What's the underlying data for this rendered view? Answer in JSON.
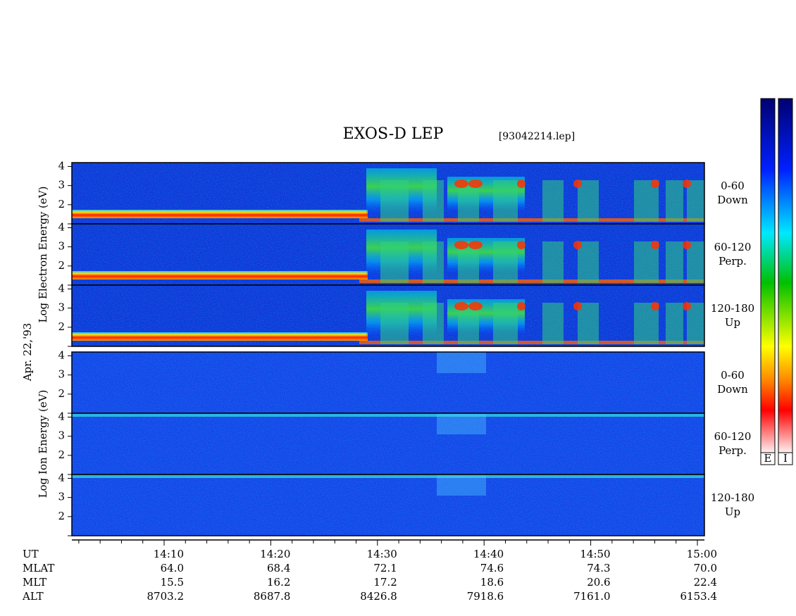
{
  "header": {
    "title": "EXOS-D LEP",
    "file": "[93042214.lep]"
  },
  "chart_data": {
    "type": "spectrogram",
    "groups": [
      {
        "y_label": "Log  Electron  Energy (eV)",
        "species": "E",
        "panels": [
          {
            "range": "0-60",
            "direction": "Down",
            "ylim": [
              1,
              4.2
            ],
            "yticks": [
              2,
              3,
              4
            ]
          },
          {
            "range": "60-120",
            "direction": "Perp.",
            "ylim": [
              1,
              4.2
            ],
            "yticks": [
              2,
              3,
              4
            ]
          },
          {
            "range": "120-180",
            "direction": "Up",
            "ylim": [
              1,
              4.2
            ],
            "yticks": [
              2,
              3,
              4
            ]
          }
        ]
      },
      {
        "y_label": "Log  Ion  Energy (eV)",
        "species": "I",
        "panels": [
          {
            "range": "0-60",
            "direction": "Down",
            "ylim": [
              1,
              4.2
            ],
            "yticks": [
              2,
              3,
              4
            ]
          },
          {
            "range": "60-120",
            "direction": "Perp.",
            "ylim": [
              1,
              4.2
            ],
            "yticks": [
              2,
              3,
              4
            ]
          },
          {
            "range": "120-180",
            "direction": "Up",
            "ylim": [
              1,
              4.2
            ],
            "yticks": [
              2,
              3,
              4
            ]
          }
        ]
      }
    ],
    "date": "Apr. 22,'93",
    "colorbar_labels": [
      "E",
      "I"
    ]
  },
  "ephemeris": {
    "row_labels": [
      "UT",
      "MLAT",
      "MLT",
      "ALT"
    ],
    "rows": [
      [
        "14:10",
        "14:20",
        "14:30",
        "14:40",
        "14:50",
        "15:00"
      ],
      [
        "64.0",
        "68.4",
        "72.1",
        "74.6",
        "74.3",
        "70.0"
      ],
      [
        "15.5",
        "16.2",
        "17.2",
        "18.6",
        "20.6",
        "22.4"
      ],
      [
        "8703.2",
        "8687.8",
        "8426.8",
        "7918.6",
        "7161.0",
        "6153.4"
      ]
    ]
  }
}
